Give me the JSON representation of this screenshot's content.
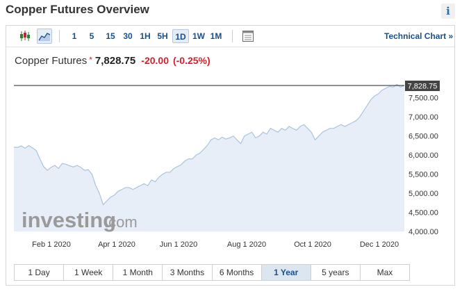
{
  "page": {
    "title": "Copper Futures Overview",
    "info_label": "i"
  },
  "toolbar": {
    "timeframes": [
      {
        "label": "1",
        "active": false
      },
      {
        "label": "5",
        "active": false
      },
      {
        "label": "15",
        "active": false
      },
      {
        "label": "30",
        "active": false
      },
      {
        "label": "1H",
        "active": false
      },
      {
        "label": "5H",
        "active": false
      },
      {
        "label": "1D",
        "active": true
      },
      {
        "label": "1W",
        "active": false
      },
      {
        "label": "1M",
        "active": false
      }
    ],
    "technical_chart_label": "Technical Chart »"
  },
  "quote": {
    "name": "Copper Futures",
    "star": "*",
    "price": "7,828.75",
    "change": "-20.00",
    "change_pct": "(-0.25%)",
    "colors": {
      "negative": "#d21f2b"
    }
  },
  "chart_data": {
    "type": "area",
    "x_tick_labels": [
      "Feb 1 2020",
      "Apr 1 2020",
      "Jun 1 2020",
      "Aug 1 2020",
      "Oct 1 2020",
      "Dec 1 2020"
    ],
    "y_tick_labels": [
      "7,500.00",
      "7,000.00",
      "6,500.00",
      "6,000.00",
      "5,500.00",
      "5,000.00",
      "4,500.00",
      "4,000.00"
    ],
    "y_ticks": [
      7500,
      7000,
      6500,
      6000,
      5500,
      5000,
      4500,
      4000
    ],
    "ylim": [
      4000,
      7950
    ],
    "last_value": 7828.75,
    "last_value_label": "7,828.75",
    "watermark": {
      "brand": "investing",
      "suffix": ".com"
    },
    "colors": {
      "line": "#a9c4e0",
      "fill": "#e7eef7",
      "reference": "#222222"
    },
    "values": [
      6210,
      6200,
      6240,
      6180,
      6250,
      6190,
      6120,
      5900,
      5700,
      5600,
      5680,
      5730,
      5650,
      5780,
      5760,
      5720,
      5690,
      5730,
      5680,
      5600,
      5620,
      5500,
      5200,
      5000,
      4700,
      4800,
      4900,
      4950,
      5050,
      5100,
      5150,
      5150,
      5100,
      5150,
      5200,
      5250,
      5200,
      5350,
      5300,
      5420,
      5500,
      5550,
      5550,
      5650,
      5700,
      5750,
      5850,
      5900,
      5900,
      6000,
      6050,
      6150,
      6250,
      6400,
      6450,
      6400,
      6470,
      6420,
      6450,
      6500,
      6400,
      6300,
      6500,
      6550,
      6600,
      6450,
      6500,
      6600,
      6550,
      6700,
      6650,
      6600,
      6700,
      6650,
      6750,
      6700,
      6650,
      6750,
      6800,
      6700,
      6600,
      6400,
      6500,
      6600,
      6650,
      6700,
      6700,
      6750,
      6800,
      6750,
      6800,
      6850,
      6900,
      7000,
      7150,
      7300,
      7450,
      7550,
      7600,
      7700,
      7750,
      7800,
      7780,
      7850,
      7780,
      7828.75
    ]
  },
  "ranges": [
    {
      "label": "1 Day",
      "active": false
    },
    {
      "label": "1 Week",
      "active": false
    },
    {
      "label": "1 Month",
      "active": false
    },
    {
      "label": "3 Months",
      "active": false
    },
    {
      "label": "6 Months",
      "active": false
    },
    {
      "label": "1 Year",
      "active": true
    },
    {
      "label": "5 years",
      "active": false
    },
    {
      "label": "Max",
      "active": false
    }
  ]
}
